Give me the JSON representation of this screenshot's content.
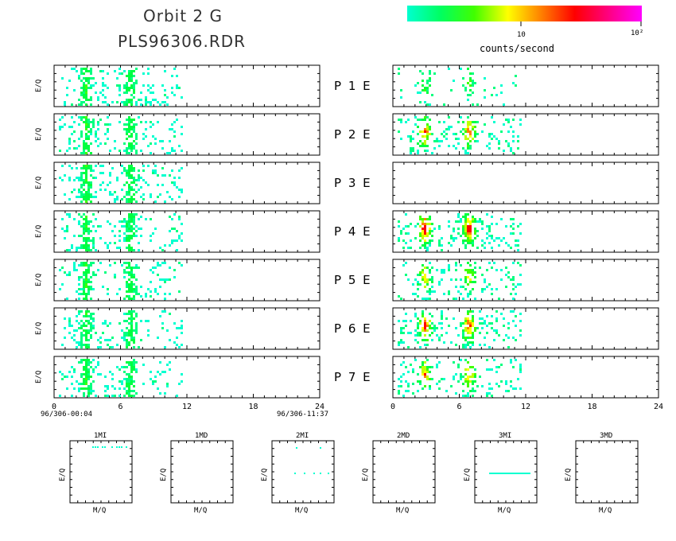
{
  "header": {
    "title_line1": "Orbit 2 G",
    "title_line2": "PLS96306.RDR"
  },
  "colorbar": {
    "tick_10": "10",
    "tick_100": "10²",
    "label": "counts/second",
    "stops": [
      "#00ffd0",
      "#00ff60",
      "#40ff00",
      "#ffff00",
      "#ff8000",
      "#ff0000",
      "#ff0080",
      "#ff00ff"
    ]
  },
  "chart_data": {
    "type": "heatmap",
    "ylabel": "E/Q",
    "x_ticks": [
      "0",
      "6",
      "12",
      "18",
      "24"
    ],
    "xlim": [
      0,
      24
    ],
    "time_start": "96/306-00:04",
    "time_end": "96/306-11:37",
    "rows": [
      {
        "label": "P 1 E",
        "left_intensity": 0.55,
        "right_intensity": 0.3,
        "right_level": "low"
      },
      {
        "label": "P 2 E",
        "left_intensity": 0.55,
        "right_intensity": 0.75,
        "right_level": "medium"
      },
      {
        "label": "P 3 E",
        "left_intensity": 0.55,
        "right_intensity": 0.0,
        "right_level": "none"
      },
      {
        "label": "P 4 E",
        "left_intensity": 0.55,
        "right_intensity": 0.95,
        "right_level": "high"
      },
      {
        "label": "P 5 E",
        "left_intensity": 0.4,
        "right_intensity": 0.55,
        "right_level": "medium"
      },
      {
        "label": "P 6 E",
        "left_intensity": 0.55,
        "right_intensity": 0.85,
        "right_level": "high"
      },
      {
        "label": "P 7 E",
        "left_intensity": 0.55,
        "right_intensity": 0.7,
        "right_level": "medium"
      }
    ],
    "data_time_range_hours": [
      0,
      11.6
    ],
    "peak_times_hours": [
      2.8,
      6.8
    ]
  },
  "small_plots": {
    "xlabel": "M/Q",
    "ylabel": "E/Q",
    "panels": [
      {
        "title": "1MI",
        "feature": "top-line"
      },
      {
        "title": "1MD",
        "feature": "none"
      },
      {
        "title": "2MI",
        "feature": "sparse-mid"
      },
      {
        "title": "2MD",
        "feature": "none"
      },
      {
        "title": "3MI",
        "feature": "mid-line"
      },
      {
        "title": "3MD",
        "feature": "none"
      }
    ]
  }
}
